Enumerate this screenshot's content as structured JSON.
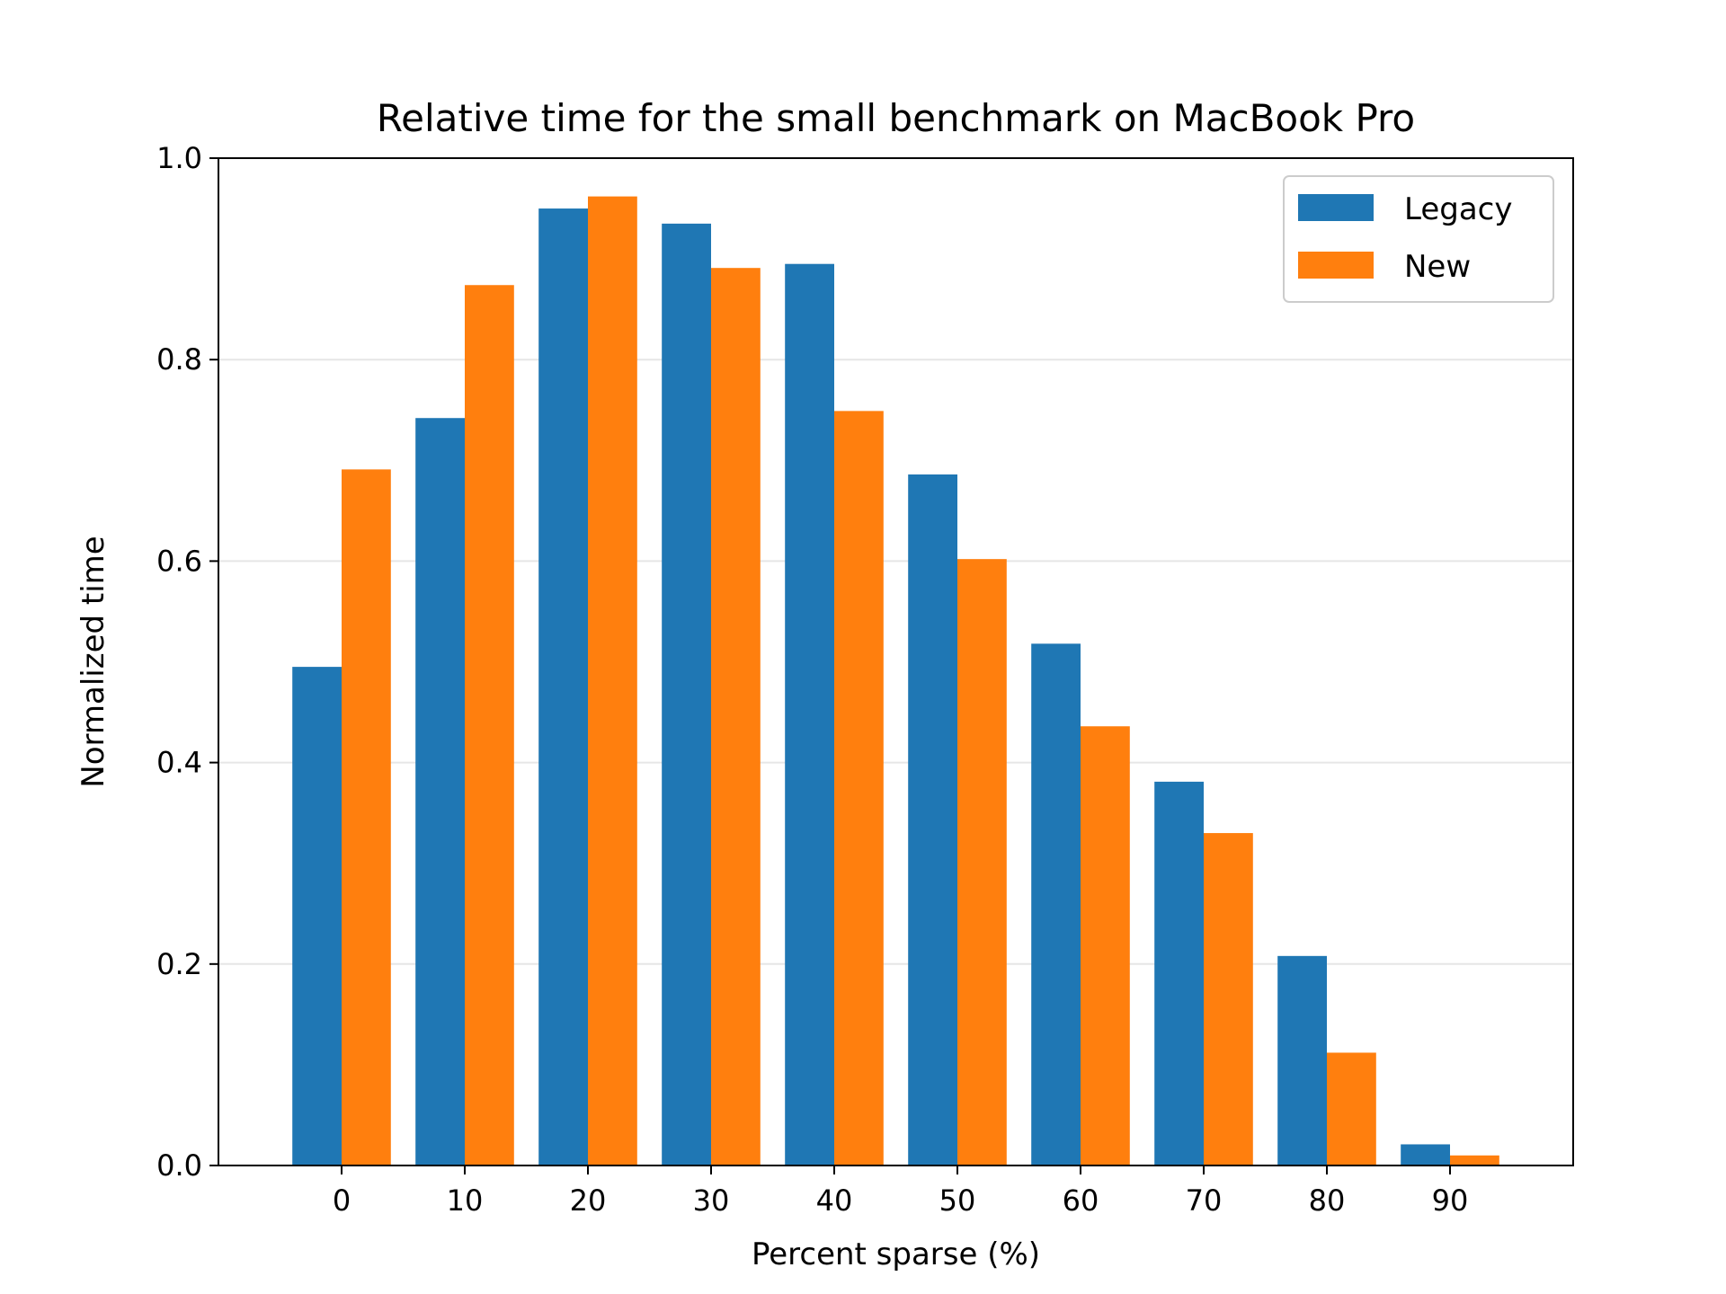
{
  "chart_data": {
    "type": "bar",
    "title": "Relative time for the small benchmark on MacBook Pro",
    "xlabel": "Percent sparse (%)",
    "ylabel": "Normalized time",
    "categories": [
      "0",
      "10",
      "20",
      "30",
      "40",
      "50",
      "60",
      "70",
      "80",
      "90"
    ],
    "series": [
      {
        "name": "Legacy",
        "color": "#1f77b4",
        "values": [
          0.495,
          0.742,
          0.95,
          0.935,
          0.895,
          0.686,
          0.518,
          0.381,
          0.208,
          0.021
        ]
      },
      {
        "name": "New",
        "color": "#ff7f0e",
        "values": [
          0.691,
          0.874,
          0.962,
          0.891,
          0.749,
          0.602,
          0.436,
          0.33,
          0.112,
          0.01
        ]
      }
    ],
    "ylim": [
      0.0,
      1.0
    ],
    "yticks": [
      "0.0",
      "0.2",
      "0.4",
      "0.6",
      "0.8",
      "1.0"
    ],
    "ytick_values": [
      0.0,
      0.2,
      0.4,
      0.6,
      0.8,
      1.0
    ],
    "grid": "horizontal",
    "legend_position": "top-right"
  }
}
